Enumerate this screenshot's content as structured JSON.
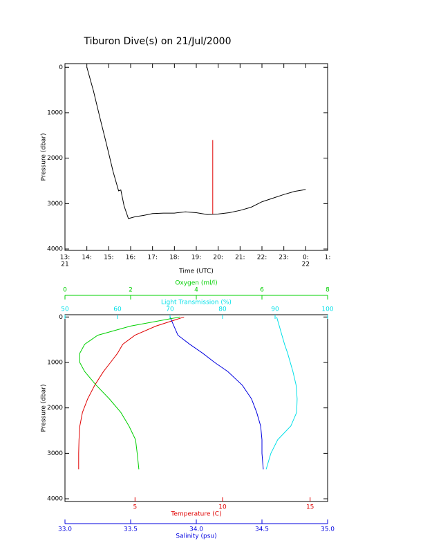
{
  "chart_data": [
    {
      "type": "line",
      "title": "Tiburon Dive(s) on 21/Jul/2000",
      "xlabel": "Time (UTC)",
      "ylabel": "Pressure (dbar)",
      "xlim": [
        13,
        25
      ],
      "ylim": [
        -80,
        4030
      ],
      "y_inverted": true,
      "xticks": [
        {
          "value": 13,
          "label": "13:",
          "sublabel": "21"
        },
        {
          "value": 14,
          "label": "14:"
        },
        {
          "value": 15,
          "label": "15:"
        },
        {
          "value": 16,
          "label": "16:"
        },
        {
          "value": 17,
          "label": "17:"
        },
        {
          "value": 18,
          "label": "18:"
        },
        {
          "value": 19,
          "label": "19:"
        },
        {
          "value": 20,
          "label": "20:"
        },
        {
          "value": 21,
          "label": "21:"
        },
        {
          "value": 22,
          "label": "22:"
        },
        {
          "value": 23,
          "label": "23:"
        },
        {
          "value": 24,
          "label": "0:",
          "sublabel": "22"
        },
        {
          "value": 25,
          "label": "1:"
        }
      ],
      "yticks": [
        0,
        1000,
        2000,
        3000,
        4000
      ],
      "series": [
        {
          "color": "#e00000",
          "x": [
            19.75,
            19.75
          ],
          "values": [
            3230,
            1600
          ]
        },
        {
          "color": "#000000",
          "x": [
            14,
            14.3,
            14.6,
            14.9,
            15.2,
            15.45,
            15.55,
            15.7,
            15.9,
            16.2,
            16.6,
            17,
            17.5,
            18,
            18.5,
            19,
            19.5,
            20,
            20.5,
            21,
            21.5,
            22,
            22.5,
            23,
            23.5,
            24
          ],
          "values": [
            0,
            520,
            1120,
            1700,
            2300,
            2720,
            2700,
            3050,
            3330,
            3290,
            3260,
            3220,
            3210,
            3210,
            3180,
            3200,
            3240,
            3230,
            3200,
            3150,
            3080,
            2960,
            2880,
            2800,
            2730,
            2690
          ]
        }
      ]
    },
    {
      "type": "profile",
      "ylabel": "Pressure (dbar)",
      "ylim": [
        -50,
        4060
      ],
      "y_inverted": true,
      "yticks": [
        0,
        1000,
        2000,
        3000,
        4000
      ],
      "y": [
        0,
        200,
        400,
        600,
        800,
        1000,
        1200,
        1500,
        1800,
        2100,
        2400,
        2700,
        3000,
        3350
      ],
      "series": [
        {
          "axis_label": "Temperature (C)",
          "color": "#e00000",
          "side": "bottom",
          "xlim": [
            1,
            16
          ],
          "xticks": [
            5,
            10,
            15
          ],
          "x": [
            7.8,
            6.2,
            5.0,
            4.3,
            4.0,
            3.6,
            3.2,
            2.7,
            2.3,
            2.0,
            1.85,
            1.8,
            1.78,
            1.78
          ]
        },
        {
          "axis_label": "Salinity (psu)",
          "color": "#0000e0",
          "side": "bottom",
          "xlim": [
            33,
            35
          ],
          "xticks": [
            {
              "value": 33,
              "label": "33.0"
            },
            33.5,
            {
              "value": 34,
              "label": "34.0"
            },
            34.5,
            {
              "value": 35,
              "label": "35.0"
            }
          ],
          "x": [
            33.8,
            33.83,
            33.86,
            33.95,
            34.05,
            34.14,
            34.24,
            34.35,
            34.42,
            34.46,
            34.49,
            34.5,
            34.5,
            34.51
          ]
        },
        {
          "axis_label": "Light Transmission (%)",
          "color": "#00e0e8",
          "side": "top",
          "xlim": [
            50,
            100
          ],
          "xticks": [
            50,
            60,
            70,
            80,
            90,
            100
          ],
          "x": [
            90.3,
            90.8,
            91.3,
            91.8,
            92.4,
            92.9,
            93.4,
            94.0,
            94.2,
            94.1,
            93.0,
            90.5,
            89.2,
            88.3
          ]
        },
        {
          "axis_label": "Oxygen (ml/l)",
          "color": "#00d000",
          "side": "top",
          "xlim": [
            0,
            8
          ],
          "xticks": [
            0,
            2,
            4,
            6,
            8
          ],
          "x": [
            3.5,
            2.0,
            1.0,
            0.6,
            0.45,
            0.45,
            0.6,
            0.95,
            1.35,
            1.7,
            1.95,
            2.15,
            2.2,
            2.25
          ]
        }
      ]
    }
  ]
}
